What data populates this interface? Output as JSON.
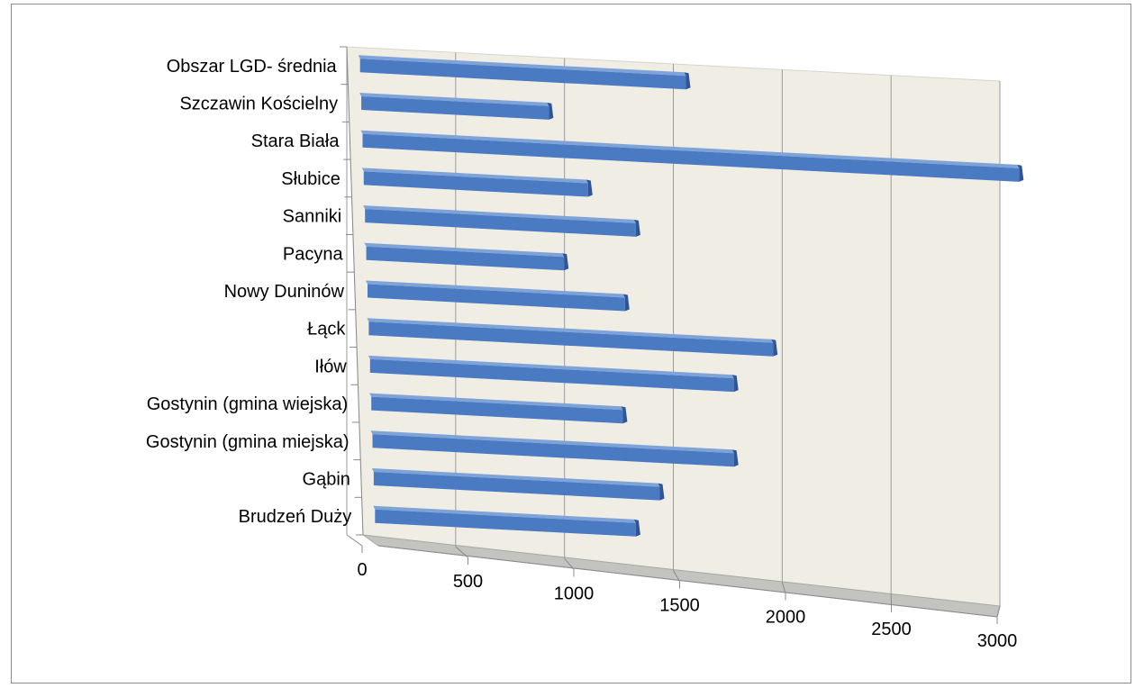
{
  "chart_data": {
    "type": "bar",
    "orientation": "horizontal",
    "style": "3d-perspective",
    "categories": [
      "Obszar LGD- średnia",
      "Szczawin Kościelny",
      "Stara Biała",
      "Słubice",
      "Sanniki",
      "Pacyna",
      "Nowy Duninów",
      "Łąck",
      "Iłów",
      "Gostynin (gmina wiejska)",
      "Gostynin (gmina miejska)",
      "Gąbin",
      "Brudzeń Duży"
    ],
    "values": [
      1500,
      870,
      3030,
      1050,
      1270,
      940,
      1220,
      1900,
      1720,
      1210,
      1720,
      1380,
      1270
    ],
    "xlim": [
      0,
      3000
    ],
    "ticks": [
      "0",
      "500",
      "1000",
      "1500",
      "2000",
      "2500",
      "3000"
    ],
    "grid": true,
    "legend": "none",
    "title": "",
    "xlabel": "",
    "ylabel": "",
    "colors": {
      "bar_top": "#7ea3d8",
      "bar_front": "#4a7ac2",
      "bar_end": "#2f5597",
      "wall": "#f0eee4",
      "floor": "#c3c3c0",
      "gridline": "#9a9a9a"
    }
  }
}
